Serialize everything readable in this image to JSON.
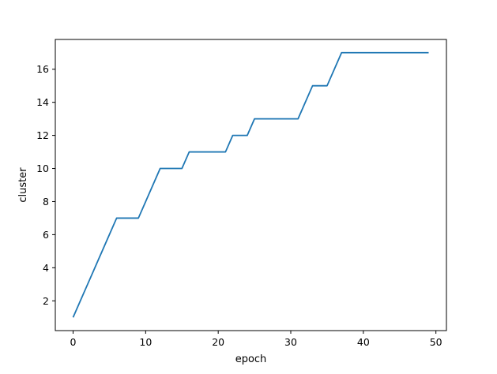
{
  "chart_data": {
    "type": "line",
    "title": "",
    "xlabel": "epoch",
    "ylabel": "cluster",
    "xlim": [
      -2.45,
      51.45
    ],
    "ylim": [
      0.2,
      17.8
    ],
    "xticks": [
      0,
      10,
      20,
      30,
      40,
      50
    ],
    "yticks": [
      2,
      4,
      6,
      8,
      10,
      12,
      14,
      16
    ],
    "grid": false,
    "legend": false,
    "series": [
      {
        "color": "#1f77b4",
        "x": [
          0,
          1,
          2,
          3,
          4,
          5,
          6,
          7,
          8,
          9,
          10,
          11,
          12,
          13,
          14,
          15,
          16,
          17,
          18,
          19,
          20,
          21,
          22,
          23,
          24,
          25,
          26,
          27,
          28,
          29,
          30,
          31,
          32,
          33,
          34,
          35,
          36,
          37,
          38,
          39,
          40,
          41,
          42,
          43,
          44,
          45,
          46,
          47,
          48,
          49
        ],
        "y": [
          1,
          2,
          3,
          4,
          5,
          6,
          7,
          7,
          7,
          7,
          8,
          9,
          10,
          10,
          10,
          10,
          11,
          11,
          11,
          11,
          11,
          11,
          12,
          12,
          12,
          13,
          13,
          13,
          13,
          13,
          13,
          13,
          14,
          15,
          15,
          15,
          16,
          17,
          17,
          17,
          17,
          17,
          17,
          17,
          17,
          17,
          17,
          17,
          17,
          17
        ]
      }
    ]
  }
}
